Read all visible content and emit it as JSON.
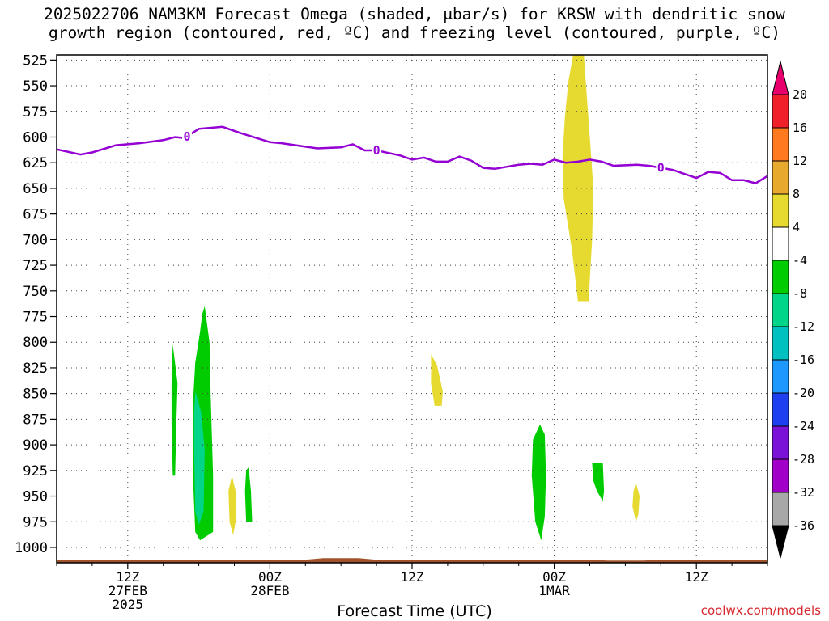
{
  "title_line1": "2025022706 NAM3KM Forecast Omega (shaded, μbar/s) for KRSW with dendritic snow",
  "title_line2": "growth region (contoured, red, ºC) and freezing level (contoured, purple, ºC)",
  "credit": "coolwx.com/models",
  "chart_data": {
    "type": "time-height cross section",
    "title": "2025022706 NAM3KM Forecast Omega (shaded, μbar/s) for KRSW with dendritic snow growth region (contoured, red, ºC) and freezing level (contoured, purple, ºC)",
    "xlabel": "Forecast Time (UTC)",
    "ylabel": "",
    "x_range_hours": [
      0,
      60
    ],
    "x_ticks": [
      {
        "hour": 6,
        "label": "12Z",
        "sub1": "27FEB",
        "sub2": "2025"
      },
      {
        "hour": 18,
        "label": "00Z",
        "sub1": "28FEB",
        "sub2": ""
      },
      {
        "hour": 30,
        "label": "12Z",
        "sub1": "",
        "sub2": ""
      },
      {
        "hour": 42,
        "label": "00Z",
        "sub1": "1MAR",
        "sub2": ""
      },
      {
        "hour": 54,
        "label": "12Z",
        "sub1": "",
        "sub2": ""
      }
    ],
    "y_levels_mb": [
      525,
      550,
      575,
      600,
      625,
      650,
      675,
      700,
      725,
      750,
      775,
      800,
      825,
      850,
      875,
      900,
      925,
      950,
      975,
      1000
    ],
    "y_range_mb": [
      520,
      1015
    ],
    "grid": true,
    "freezing_level": {
      "label": "0",
      "color": "#9400d3",
      "points": [
        [
          0,
          612
        ],
        [
          2,
          617
        ],
        [
          3,
          615
        ],
        [
          5,
          608
        ],
        [
          7,
          606
        ],
        [
          9,
          603
        ],
        [
          10,
          600
        ],
        [
          10.8,
          601
        ],
        [
          12,
          592
        ],
        [
          14,
          590
        ],
        [
          15.5,
          596
        ],
        [
          18,
          605
        ],
        [
          19,
          606
        ],
        [
          22,
          611
        ],
        [
          24,
          610
        ],
        [
          25,
          607
        ],
        [
          26,
          613
        ],
        [
          27,
          613
        ],
        [
          29,
          618
        ],
        [
          30,
          622
        ],
        [
          31,
          620
        ],
        [
          32,
          624
        ],
        [
          33,
          624
        ],
        [
          34,
          619
        ],
        [
          35,
          623
        ],
        [
          36,
          630
        ],
        [
          37,
          631
        ],
        [
          39,
          627
        ],
        [
          40,
          626
        ],
        [
          41,
          627
        ],
        [
          42,
          622
        ],
        [
          43,
          625
        ],
        [
          44,
          624
        ],
        [
          45,
          622
        ],
        [
          46,
          624
        ],
        [
          47,
          628
        ],
        [
          49,
          627
        ],
        [
          50,
          628
        ],
        [
          52,
          632
        ],
        [
          54,
          640
        ],
        [
          55,
          634
        ],
        [
          56,
          635
        ],
        [
          57,
          642
        ],
        [
          58,
          642
        ],
        [
          59,
          645
        ],
        [
          60,
          638
        ]
      ],
      "label_hours": [
        11,
        27,
        51
      ]
    },
    "omega_regions": [
      {
        "value_range": "4 to 8",
        "color": "#e6da31",
        "points": [
          [
            43.6,
            520
          ],
          [
            44.5,
            520
          ],
          [
            45,
            600
          ],
          [
            45.3,
            650
          ],
          [
            45.2,
            700
          ],
          [
            44.9,
            760
          ],
          [
            44,
            760
          ],
          [
            43.5,
            710
          ],
          [
            42.8,
            660
          ],
          [
            42.7,
            620
          ],
          [
            42.9,
            580
          ],
          [
            43.2,
            545
          ]
        ]
      },
      {
        "value_range": "4 to 8",
        "color": "#e6da31",
        "points": [
          [
            31.6,
            812
          ],
          [
            32.1,
            822
          ],
          [
            32.6,
            848
          ],
          [
            32.5,
            862
          ],
          [
            31.9,
            862
          ],
          [
            31.6,
            840
          ]
        ]
      },
      {
        "value_range": "4 to 8",
        "color": "#e6da31",
        "points": [
          [
            14.8,
            930
          ],
          [
            15.1,
            945
          ],
          [
            15.1,
            975
          ],
          [
            14.9,
            988
          ],
          [
            14.6,
            975
          ],
          [
            14.5,
            945
          ]
        ]
      },
      {
        "value_range": "4 to 8",
        "color": "#e6da31",
        "points": [
          [
            48.9,
            937
          ],
          [
            49.2,
            950
          ],
          [
            49.1,
            968
          ],
          [
            48.9,
            975
          ],
          [
            48.6,
            960
          ],
          [
            48.7,
            945
          ]
        ]
      },
      {
        "value_range": "-8 to -4",
        "color": "#00cc00",
        "points": [
          [
            12.5,
            765
          ],
          [
            12.9,
            800
          ],
          [
            13,
            850
          ],
          [
            13.2,
            930
          ],
          [
            13.2,
            985
          ],
          [
            12.1,
            993
          ],
          [
            11.7,
            985
          ],
          [
            11.5,
            930
          ],
          [
            11.5,
            860
          ],
          [
            11.7,
            820
          ],
          [
            12.1,
            790
          ],
          [
            12.3,
            772
          ]
        ]
      },
      {
        "value_range": "-8 to -4",
        "color": "#00cc00",
        "points": [
          [
            9.8,
            802
          ],
          [
            10.2,
            840
          ],
          [
            10.1,
            880
          ],
          [
            10,
            930
          ],
          [
            9.8,
            930
          ],
          [
            9.7,
            880
          ],
          [
            9.7,
            840
          ]
        ]
      },
      {
        "value_range": "-8 to -4",
        "color": "#00cc00",
        "points": [
          [
            16.2,
            922
          ],
          [
            16.4,
            945
          ],
          [
            16.5,
            975
          ],
          [
            16,
            975
          ],
          [
            15.9,
            945
          ],
          [
            16,
            925
          ]
        ]
      },
      {
        "value_range": "-8 to -4",
        "color": "#00cc00",
        "points": [
          [
            40.8,
            880
          ],
          [
            41.2,
            890
          ],
          [
            41.3,
            930
          ],
          [
            41.2,
            970
          ],
          [
            40.9,
            993
          ],
          [
            40.4,
            975
          ],
          [
            40.1,
            930
          ],
          [
            40.2,
            895
          ]
        ]
      },
      {
        "value_range": "-8 to -4",
        "color": "#00cc00",
        "points": [
          [
            45.2,
            918
          ],
          [
            46.1,
            918
          ],
          [
            46.2,
            945
          ],
          [
            46.1,
            955
          ],
          [
            45.6,
            945
          ],
          [
            45.3,
            935
          ]
        ]
      },
      {
        "value_range": "-12 to -8",
        "color": "#00d58a",
        "points": [
          [
            11.7,
            848
          ],
          [
            12.2,
            868
          ],
          [
            12.5,
            905
          ],
          [
            12.4,
            965
          ],
          [
            12,
            978
          ],
          [
            11.7,
            965
          ],
          [
            11.6,
            900
          ],
          [
            11.6,
            870
          ]
        ]
      }
    ],
    "ground": {
      "color": "#a0522d",
      "level_mb": 1012
    },
    "colorbar": {
      "labels": [
        "20",
        "16",
        "12",
        "8",
        "4",
        "-4",
        "-8",
        "-12",
        "-16",
        "-20",
        "-24",
        "-28",
        "-32",
        "-36"
      ],
      "colors": [
        "#e8006c",
        "#f0202a",
        "#ff7a1f",
        "#e7a92e",
        "#e6da31",
        "#ffffff",
        "#00cc00",
        "#00d58a",
        "#00c0c0",
        "#1c98ff",
        "#1e3ff0",
        "#7a12d8",
        "#a000c8",
        "#a8a8a8",
        "#000000"
      ]
    }
  }
}
